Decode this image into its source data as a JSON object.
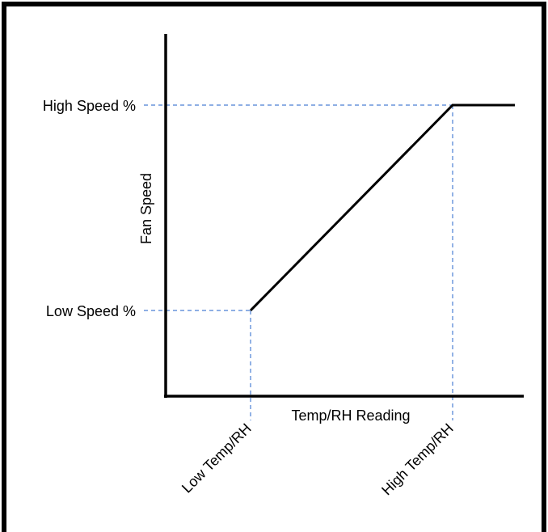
{
  "diagram": {
    "x_axis_label": "Temp/RH Reading",
    "y_axis_label": "Fan Speed",
    "y_markers": {
      "high": "High Speed %",
      "low": "Low Speed %"
    },
    "x_markers": {
      "low": "Low Temp/RH",
      "high": "High Temp/RH"
    },
    "colors": {
      "frame": "#000000",
      "curve": "#000000",
      "axes": "#000000",
      "guides": "#4a7fd4"
    },
    "curve_shape": "flat low, linear ramp from low to high, flat high"
  }
}
